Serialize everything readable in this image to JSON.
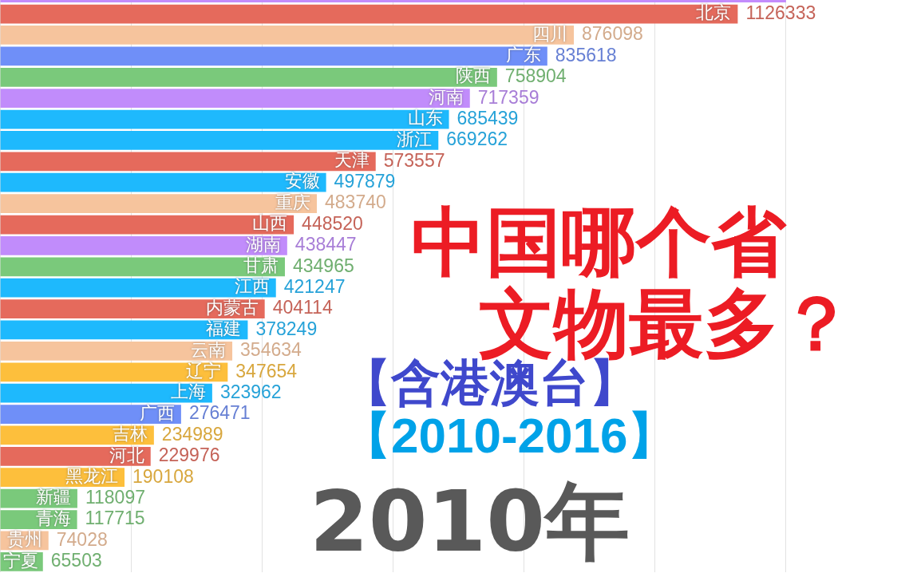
{
  "chart_data": {
    "type": "bar",
    "orientation": "horizontal",
    "title": "中国哪个省文物最多？",
    "subtitle": "【含港澳台】【2010-2016】",
    "annotations": [
      "2010年"
    ],
    "categories": [
      null,
      "北京",
      "四川",
      "广东",
      "陕西",
      "河南",
      "山东",
      "浙江",
      "天津",
      "安徽",
      "重庆",
      "山西",
      "湖南",
      "甘肃",
      "江西",
      "内蒙古",
      "福建",
      "云南",
      "辽宁",
      "上海",
      "广西",
      "吉林",
      "河北",
      "黑龙江",
      "新疆",
      "青海",
      "贵州",
      "宁夏"
    ],
    "values": [
      1200000,
      1126333,
      876098,
      835618,
      758904,
      717359,
      685439,
      669262,
      573557,
      497879,
      483740,
      448520,
      438447,
      434965,
      421247,
      404114,
      378249,
      354634,
      347654,
      323962,
      276471,
      234989,
      229976,
      190108,
      118097,
      117715,
      74028,
      65503
    ],
    "value_labels": [
      null,
      "1126333",
      "876098",
      "835618",
      "758904",
      "717359",
      "685439",
      "669262",
      "573557",
      "497879",
      "483740",
      "448520",
      "438447",
      "434965",
      "421247",
      "404114",
      "378249",
      "354634",
      "347654",
      "323962",
      "276471",
      "234989",
      "229976",
      "190108",
      "118097",
      "117715",
      "74028",
      "65503"
    ],
    "colors": [
      "#c38cfc",
      "#e56a5c",
      "#f6c49d",
      "#6f8ff8",
      "#7ac97b",
      "#c18cfb",
      "#1eb9fd",
      "#1eb9fd",
      "#e56a5c",
      "#1eb9fd",
      "#f6c49d",
      "#e56a5c",
      "#c18cfb",
      "#7ac97b",
      "#1eb9fd",
      "#e56a5c",
      "#1eb9fd",
      "#f6c49d",
      "#fdbf3c",
      "#1eb9fd",
      "#6f8ff8",
      "#fdbf3c",
      "#e56a5c",
      "#fdbf3c",
      "#7ac97b",
      "#7ac97b",
      "#f6c49d",
      "#7ac97b"
    ],
    "grid": "x",
    "tick_labels": false
  }
}
